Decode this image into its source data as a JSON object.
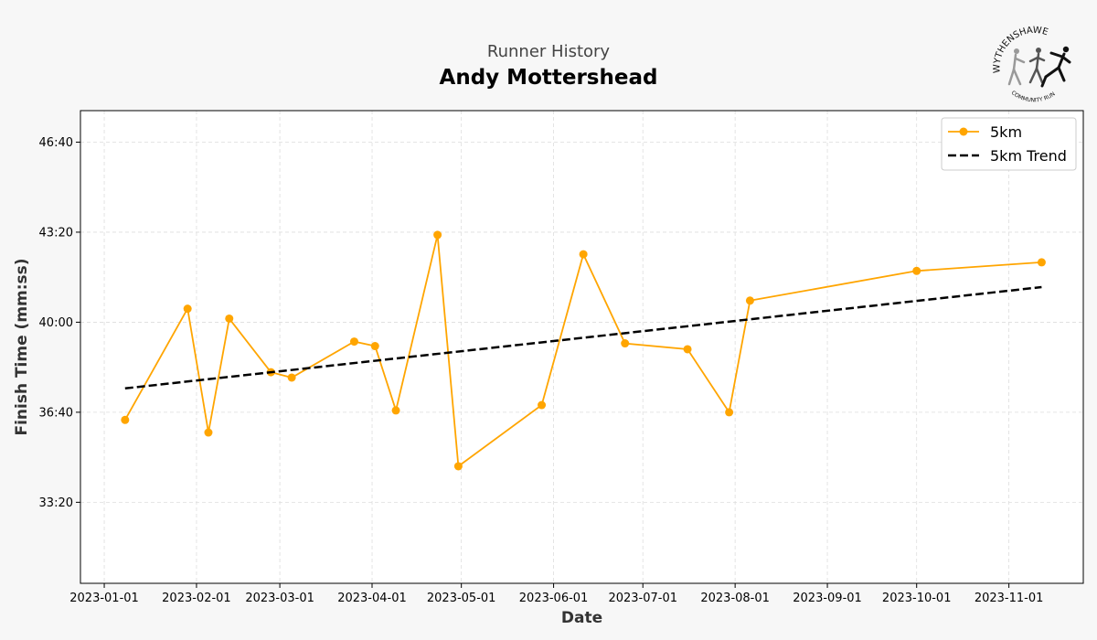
{
  "header": {
    "subtitle": "Runner History",
    "title": "Andy Mottershead"
  },
  "logo": {
    "top_text": "WYTHENSHAWE",
    "bottom_text": "COMMUNITY RUN"
  },
  "chart_data": {
    "type": "line",
    "xlabel": "Date",
    "ylabel": "Finish Time (mm:ss)",
    "xlim": [
      "2022-12-24",
      "2023-11-26"
    ],
    "ylim_seconds": [
      1820,
      2870
    ],
    "x_ticks": [
      "2023-01-01",
      "2023-02-01",
      "2023-03-01",
      "2023-04-01",
      "2023-05-01",
      "2023-06-01",
      "2023-07-01",
      "2023-08-01",
      "2023-09-01",
      "2023-10-01",
      "2023-11-01"
    ],
    "y_ticks": [
      {
        "seconds": 2000,
        "label": "33:20"
      },
      {
        "seconds": 2200,
        "label": "36:40"
      },
      {
        "seconds": 2400,
        "label": "40:00"
      },
      {
        "seconds": 2600,
        "label": "43:20"
      },
      {
        "seconds": 2800,
        "label": "46:40"
      }
    ],
    "grid": true,
    "legend_position": "top-right",
    "series": [
      {
        "name": "5km",
        "color": "#ffa500",
        "style": "solid-markers",
        "points": [
          {
            "date": "2023-01-08",
            "seconds": 2183
          },
          {
            "date": "2023-01-29",
            "seconds": 2430
          },
          {
            "date": "2023-02-05",
            "seconds": 2155
          },
          {
            "date": "2023-02-12",
            "seconds": 2408
          },
          {
            "date": "2023-02-26",
            "seconds": 2289
          },
          {
            "date": "2023-03-05",
            "seconds": 2277
          },
          {
            "date": "2023-03-26",
            "seconds": 2357
          },
          {
            "date": "2023-04-02",
            "seconds": 2347
          },
          {
            "date": "2023-04-09",
            "seconds": 2204
          },
          {
            "date": "2023-04-23",
            "seconds": 2594
          },
          {
            "date": "2023-04-30",
            "seconds": 2080
          },
          {
            "date": "2023-05-28",
            "seconds": 2216
          },
          {
            "date": "2023-06-11",
            "seconds": 2551
          },
          {
            "date": "2023-06-25",
            "seconds": 2353
          },
          {
            "date": "2023-07-16",
            "seconds": 2340
          },
          {
            "date": "2023-07-30",
            "seconds": 2200
          },
          {
            "date": "2023-08-06",
            "seconds": 2448
          },
          {
            "date": "2023-10-01",
            "seconds": 2514
          },
          {
            "date": "2023-11-12",
            "seconds": 2533
          }
        ]
      },
      {
        "name": "5km Trend",
        "color": "#000000",
        "style": "dashed",
        "points": [
          {
            "date": "2023-01-08",
            "seconds": 2253
          },
          {
            "date": "2023-11-12",
            "seconds": 2478
          }
        ]
      }
    ]
  }
}
